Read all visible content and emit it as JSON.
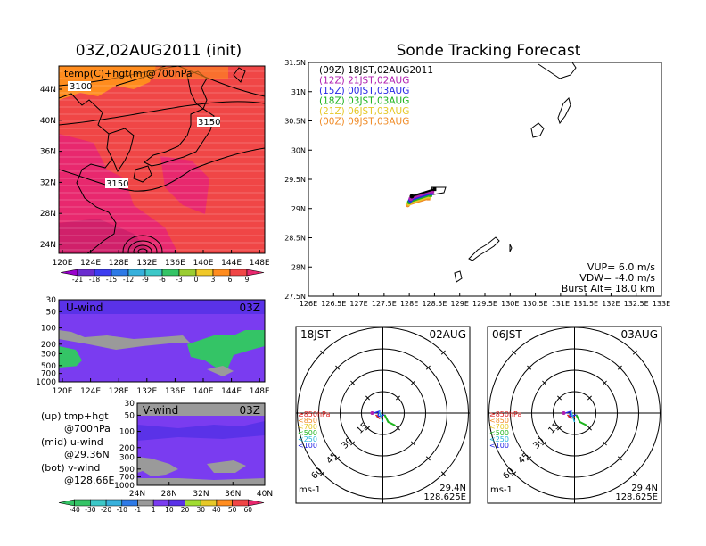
{
  "left_title": "03Z,02AUG2011 (init)",
  "right_title": "Sonde Tracking Forecast",
  "map": {
    "label": "temp(C)+hgt(m)@700hPa",
    "contour_labels": [
      "3100",
      "3150",
      "3150"
    ],
    "lat_ticks": [
      "44N",
      "40N",
      "36N",
      "32N",
      "28N",
      "24N"
    ],
    "lon_ticks": [
      "120E",
      "124E",
      "128E",
      "132E",
      "136E",
      "140E",
      "144E",
      "148E"
    ]
  },
  "temp_colorbar": [
    "-21",
    "-18",
    "-15",
    "-12",
    "-9",
    "-6",
    "-3",
    "0",
    "3",
    "6",
    "9"
  ],
  "temp_colors": [
    "#9900cc",
    "#6a2ccf",
    "#3c3cf0",
    "#2e7ae6",
    "#36b0dc",
    "#3cc8c8",
    "#34c466",
    "#9acd32",
    "#f0c828",
    "#ff8c1e",
    "#f04646",
    "#e8286e"
  ],
  "uwind": {
    "label": "U-wind",
    "time": "03Z",
    "p_ticks": [
      "30",
      "50",
      "100",
      "200",
      "300",
      "500",
      "700",
      "1000"
    ],
    "x_ticks": [
      "120E",
      "124E",
      "128E",
      "132E",
      "136E",
      "140E",
      "144E",
      "148E"
    ]
  },
  "vwind": {
    "label": "V-wind",
    "time": "03Z",
    "p_ticks": [
      "30",
      "50",
      "100",
      "200",
      "300",
      "500",
      "700",
      "1000"
    ],
    "x_ticks": [
      "24N",
      "28N",
      "32N",
      "36N",
      "40N"
    ]
  },
  "wind_colorbar": [
    "-40",
    "-30",
    "-20",
    "-10",
    "-1",
    "1",
    "10",
    "20",
    "30",
    "40",
    "50",
    "60"
  ],
  "wind_colors": [
    "#34c466",
    "#34c466",
    "#3cc8c8",
    "#36b0dc",
    "#2e7ae6",
    "#9a9a9a",
    "#7a3cf0",
    "#5a32e8",
    "#a0dc32",
    "#e6c828",
    "#ff8c1e",
    "#f04646",
    "#e8286e"
  ],
  "notes": [
    {
      "l1": "(up) tmp+hgt",
      "l2": "@700hPa"
    },
    {
      "l1": "(mid) u-wind",
      "l2": "@29.36N"
    },
    {
      "l1": "(bot) v-wind",
      "l2": "@128.66E"
    }
  ],
  "track_map": {
    "lat_ticks": [
      "31.5N",
      "31N",
      "30.5N",
      "30N",
      "29.5N",
      "29N",
      "28.5N",
      "28N",
      "27.5N"
    ],
    "lon_ticks": [
      "126E",
      "126.5E",
      "127E",
      "127.5E",
      "128E",
      "128.5E",
      "129E",
      "129.5E",
      "130E",
      "130.5E",
      "131E",
      "131.5E",
      "132E",
      "132.5E",
      "133E"
    ],
    "legend": [
      {
        "label": "(09Z)  18JST,02AUG2011",
        "color": "#000000"
      },
      {
        "label": "(12Z)  21JST,02AUG",
        "color": "#b01eb0"
      },
      {
        "label": "(15Z)  00JST,03AUG",
        "color": "#2828e6"
      },
      {
        "label": "(18Z)  03JST,03AUG",
        "color": "#1eb41e"
      },
      {
        "label": "(21Z)  06JST,03AUG",
        "color": "#e6c828"
      },
      {
        "label": "(00Z)  09JST,03AUG",
        "color": "#f08c28"
      }
    ],
    "params": [
      "VUP= 6.0  m/s",
      "VDW= -4.0  m/s",
      "Burst Alt= 18.0  km"
    ]
  },
  "polar": [
    {
      "time": "18JST",
      "date": "02AUG",
      "lat": "29.4N",
      "lon": "128.625E",
      "unit": "ms-1",
      "rings": [
        "15",
        "30",
        "45",
        "60"
      ]
    },
    {
      "time": "06JST",
      "date": "03AUG",
      "lat": "29.4N",
      "lon": "128.625E",
      "unit": "ms-1",
      "rings": [
        "15",
        "30",
        "45",
        "60"
      ]
    }
  ],
  "pressure_legend": [
    {
      "label": "≥850hPa",
      "color": "#dc1e1e"
    },
    {
      "label": "<850",
      "color": "#f08c28"
    },
    {
      "label": "<700",
      "color": "#e6c828"
    },
    {
      "label": "<500",
      "color": "#1eb41e"
    },
    {
      "label": "<250",
      "color": "#28b4dc"
    },
    {
      "label": "<100",
      "color": "#2828e6"
    }
  ],
  "chart_data": [
    {
      "type": "heatmap",
      "title": "03Z,02AUG2011 (init)",
      "subtitle": "temp(C)+hgt(m)@700hPa",
      "xlim": [
        120,
        149
      ],
      "ylim": [
        22.5,
        47.5
      ],
      "color_levels": [
        -21,
        -18,
        -15,
        -12,
        -9,
        -6,
        -3,
        0,
        3,
        6,
        9
      ],
      "height_contours_m": [
        3100,
        3150
      ]
    },
    {
      "type": "heatmap",
      "title": "U-wind",
      "xlim": [
        120,
        149
      ],
      "ylabel_ticks_hPa": [
        30,
        50,
        100,
        200,
        300,
        500,
        700,
        1000
      ]
    },
    {
      "type": "heatmap",
      "title": "V-wind",
      "xlim": [
        24,
        40
      ],
      "ylabel_ticks_hPa": [
        30,
        50,
        100,
        200,
        300,
        500,
        700,
        1000
      ],
      "color_levels": [
        -40,
        -30,
        -20,
        -10,
        -1,
        1,
        10,
        20,
        30,
        40,
        50,
        60
      ]
    },
    {
      "type": "line",
      "title": "Sonde Tracking Forecast",
      "xlim": [
        126,
        133
      ],
      "ylim": [
        27.5,
        31.5
      ],
      "series": [
        {
          "name": "(09Z) 18JST,02AUG2011",
          "x": [
            128.05,
            128.5
          ],
          "y": [
            29.21,
            29.33
          ]
        },
        {
          "name": "(12Z) 21JST,02AUG",
          "x": [
            128.03,
            128.46
          ],
          "y": [
            29.17,
            29.29
          ]
        },
        {
          "name": "(15Z) 00JST,03AUG",
          "x": [
            128.02,
            128.44
          ],
          "y": [
            29.14,
            29.26
          ]
        },
        {
          "name": "(18Z) 03JST,03AUG",
          "x": [
            128.0,
            128.42
          ],
          "y": [
            29.11,
            29.23
          ]
        },
        {
          "name": "(21Z) 06JST,03AUG",
          "x": [
            127.99,
            128.4
          ],
          "y": [
            29.08,
            29.2
          ]
        },
        {
          "name": "(00Z) 09JST,03AUG",
          "x": [
            127.97,
            128.38
          ],
          "y": [
            29.06,
            29.17
          ]
        }
      ]
    }
  ]
}
